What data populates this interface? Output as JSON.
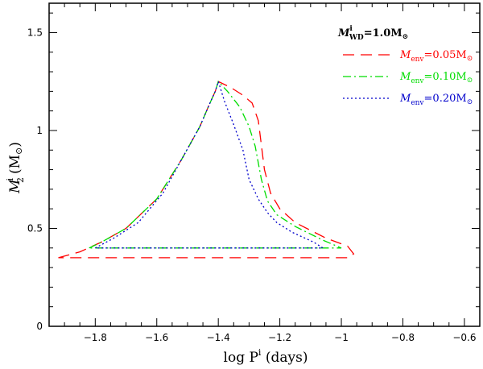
{
  "chart_data": {
    "type": "line",
    "title": "",
    "xlabel": "log P",
    "xlabel_superscript": "i",
    "xlabel_unit": " (days)",
    "ylabel": "M",
    "ylabel_superscript": "i",
    "ylabel_subscript": "2",
    "ylabel_unit": "(M",
    "ylabel_unit_close": ")",
    "sun_symbol": "⊙",
    "xlim": [
      -1.95,
      -0.55
    ],
    "ylim": [
      0,
      1.65
    ],
    "xticks": [
      -1.8,
      -1.6,
      -1.4,
      -1.2,
      -1,
      -0.8,
      -0.6
    ],
    "xtick_labels": [
      "−1.8",
      "−1.6",
      "−1.4",
      "−1.2",
      "−1",
      "−0.8",
      "−0.6"
    ],
    "yticks": [
      0,
      0.5,
      1,
      1.5
    ],
    "ytick_labels": [
      "0",
      "0.5",
      "1",
      "1.5"
    ],
    "legend_position": "top-right",
    "legend_header": {
      "prefix": "M",
      "superscript": "i",
      "subscript": "WD",
      "value": "=1.0M",
      "sun": "⊙"
    },
    "series": [
      {
        "name": "Menv=0.05M⊙",
        "label_main": "M",
        "label_sub": "env",
        "label_value": "=0.05M",
        "label_sun": "⊙",
        "color": "#ff0000",
        "dash": "14,8",
        "x": [
          -1.92,
          -1.85,
          -1.78,
          -1.7,
          -1.6,
          -1.52,
          -1.46,
          -1.43,
          -1.41,
          -1.4,
          -1.36,
          -1.32,
          -1.29,
          -1.27,
          -1.25,
          -1.23,
          -1.2,
          -1.15,
          -1.05,
          -0.98,
          -0.96,
          -0.98,
          -1.5,
          -1.92
        ],
        "y": [
          0.35,
          0.38,
          0.43,
          0.5,
          0.65,
          0.85,
          1.02,
          1.13,
          1.2,
          1.25,
          1.22,
          1.18,
          1.14,
          1.05,
          0.8,
          0.68,
          0.6,
          0.53,
          0.45,
          0.41,
          0.37,
          0.35,
          0.35,
          0.35
        ]
      },
      {
        "name": "Menv=0.10M⊙",
        "label_main": "M",
        "label_sub": "env",
        "label_value": "=0.10M",
        "label_sun": "⊙",
        "color": "#00dd00",
        "dash": "10,4,2,4",
        "x": [
          -1.82,
          -1.78,
          -1.7,
          -1.6,
          -1.52,
          -1.46,
          -1.43,
          -1.41,
          -1.4,
          -1.37,
          -1.33,
          -1.3,
          -1.28,
          -1.26,
          -1.24,
          -1.21,
          -1.15,
          -1.06,
          -1.0,
          -1.4,
          -1.82
        ],
        "y": [
          0.4,
          0.43,
          0.5,
          0.65,
          0.85,
          1.02,
          1.13,
          1.2,
          1.25,
          1.2,
          1.12,
          1.02,
          0.92,
          0.75,
          0.64,
          0.57,
          0.51,
          0.44,
          0.4,
          0.4,
          0.4
        ]
      },
      {
        "name": "Menv=0.20M⊙",
        "label_main": "M",
        "label_sub": "env",
        "label_value": "=0.20M",
        "label_sun": "⊙",
        "color": "#0000cc",
        "dash": "2,3",
        "x": [
          -1.8,
          -1.74,
          -1.66,
          -1.58,
          -1.52,
          -1.46,
          -1.43,
          -1.41,
          -1.4,
          -1.38,
          -1.35,
          -1.32,
          -1.3,
          -1.27,
          -1.24,
          -1.21,
          -1.16,
          -1.09,
          -1.06,
          -1.4,
          -1.8
        ],
        "y": [
          0.4,
          0.45,
          0.53,
          0.68,
          0.85,
          1.02,
          1.13,
          1.2,
          1.25,
          1.15,
          1.03,
          0.9,
          0.75,
          0.65,
          0.58,
          0.53,
          0.48,
          0.43,
          0.4,
          0.4,
          0.4
        ]
      }
    ]
  }
}
